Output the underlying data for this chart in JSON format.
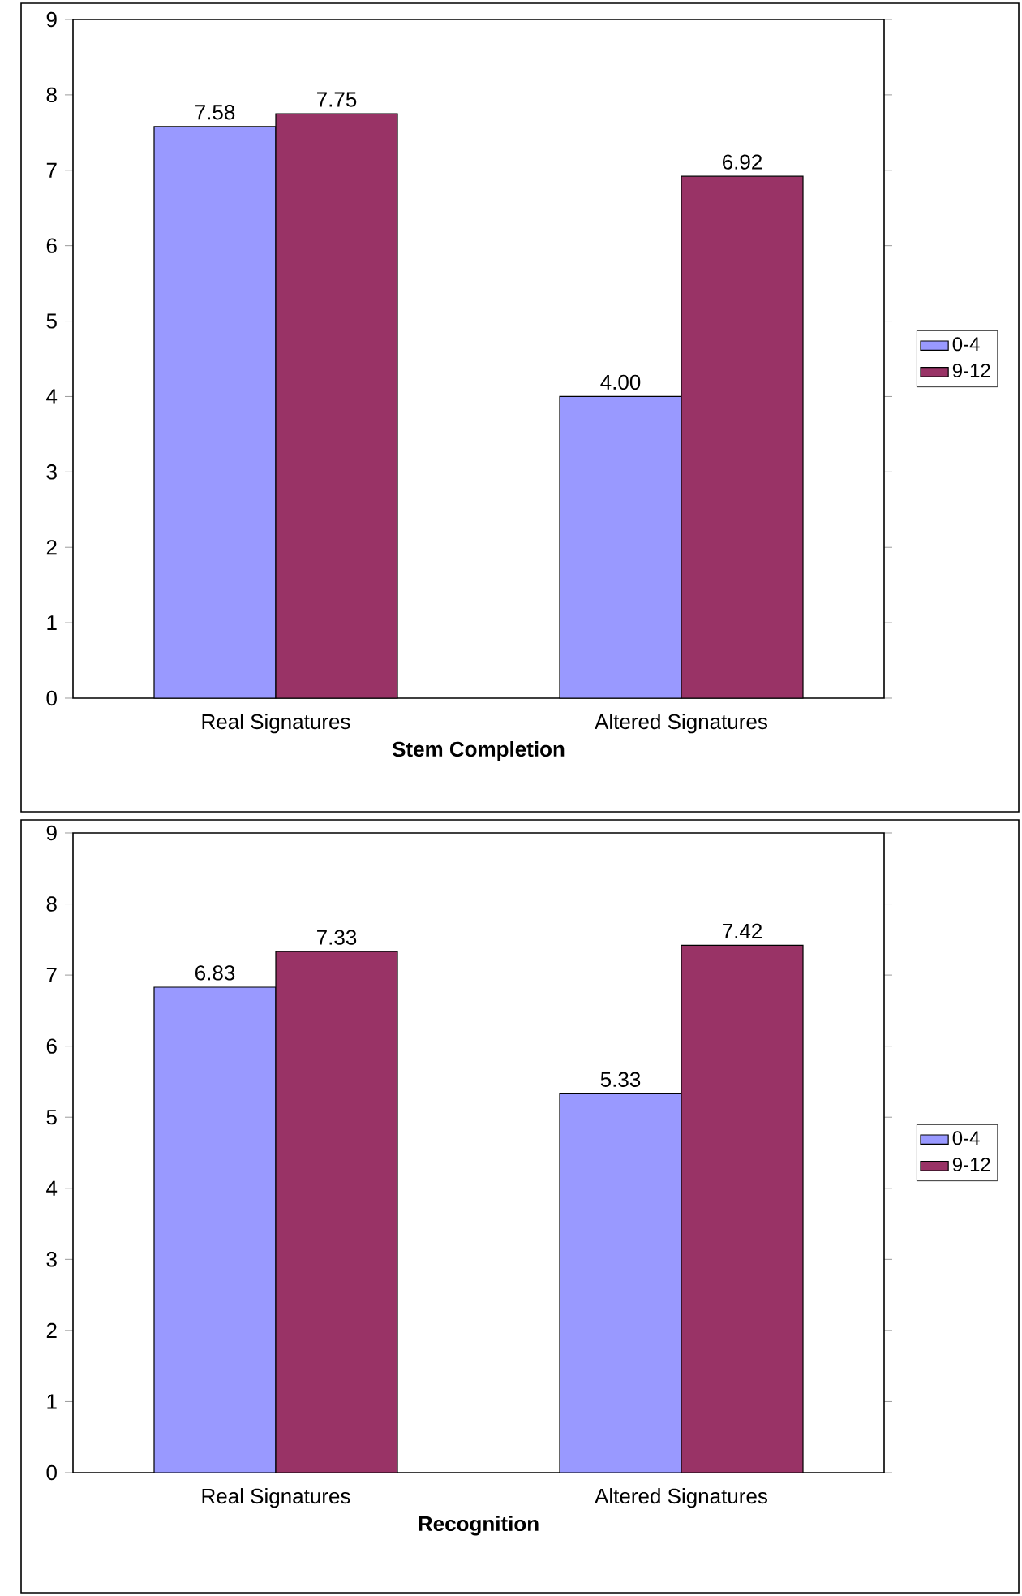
{
  "chart_data": [
    {
      "type": "bar",
      "xlabel": "Stem Completion",
      "categories": [
        "Real Signatures",
        "Altered Signatures"
      ],
      "ylim": [
        0,
        9
      ],
      "yticks": [
        0,
        1,
        2,
        3,
        4,
        5,
        6,
        7,
        8,
        9
      ],
      "legend": "right",
      "series": [
        {
          "name": "0-4",
          "color": "#9999ff",
          "values": [
            7.58,
            4.0
          ],
          "value_labels": [
            "7.58",
            "4.00"
          ]
        },
        {
          "name": "9-12",
          "color": "#993366",
          "values": [
            7.75,
            6.92
          ],
          "value_labels": [
            "7.75",
            "6.92"
          ]
        }
      ]
    },
    {
      "type": "bar",
      "xlabel": "Recognition",
      "categories": [
        "Real Signatures",
        "Altered Signatures"
      ],
      "ylim": [
        0,
        9
      ],
      "yticks": [
        0,
        1,
        2,
        3,
        4,
        5,
        6,
        7,
        8,
        9
      ],
      "legend": "right",
      "series": [
        {
          "name": "0-4",
          "color": "#9999ff",
          "values": [
            6.83,
            5.33
          ],
          "value_labels": [
            "6.83",
            "5.33"
          ]
        },
        {
          "name": "9-12",
          "color": "#993366",
          "values": [
            7.33,
            7.42
          ],
          "value_labels": [
            "7.33",
            "7.42"
          ]
        }
      ]
    }
  ]
}
